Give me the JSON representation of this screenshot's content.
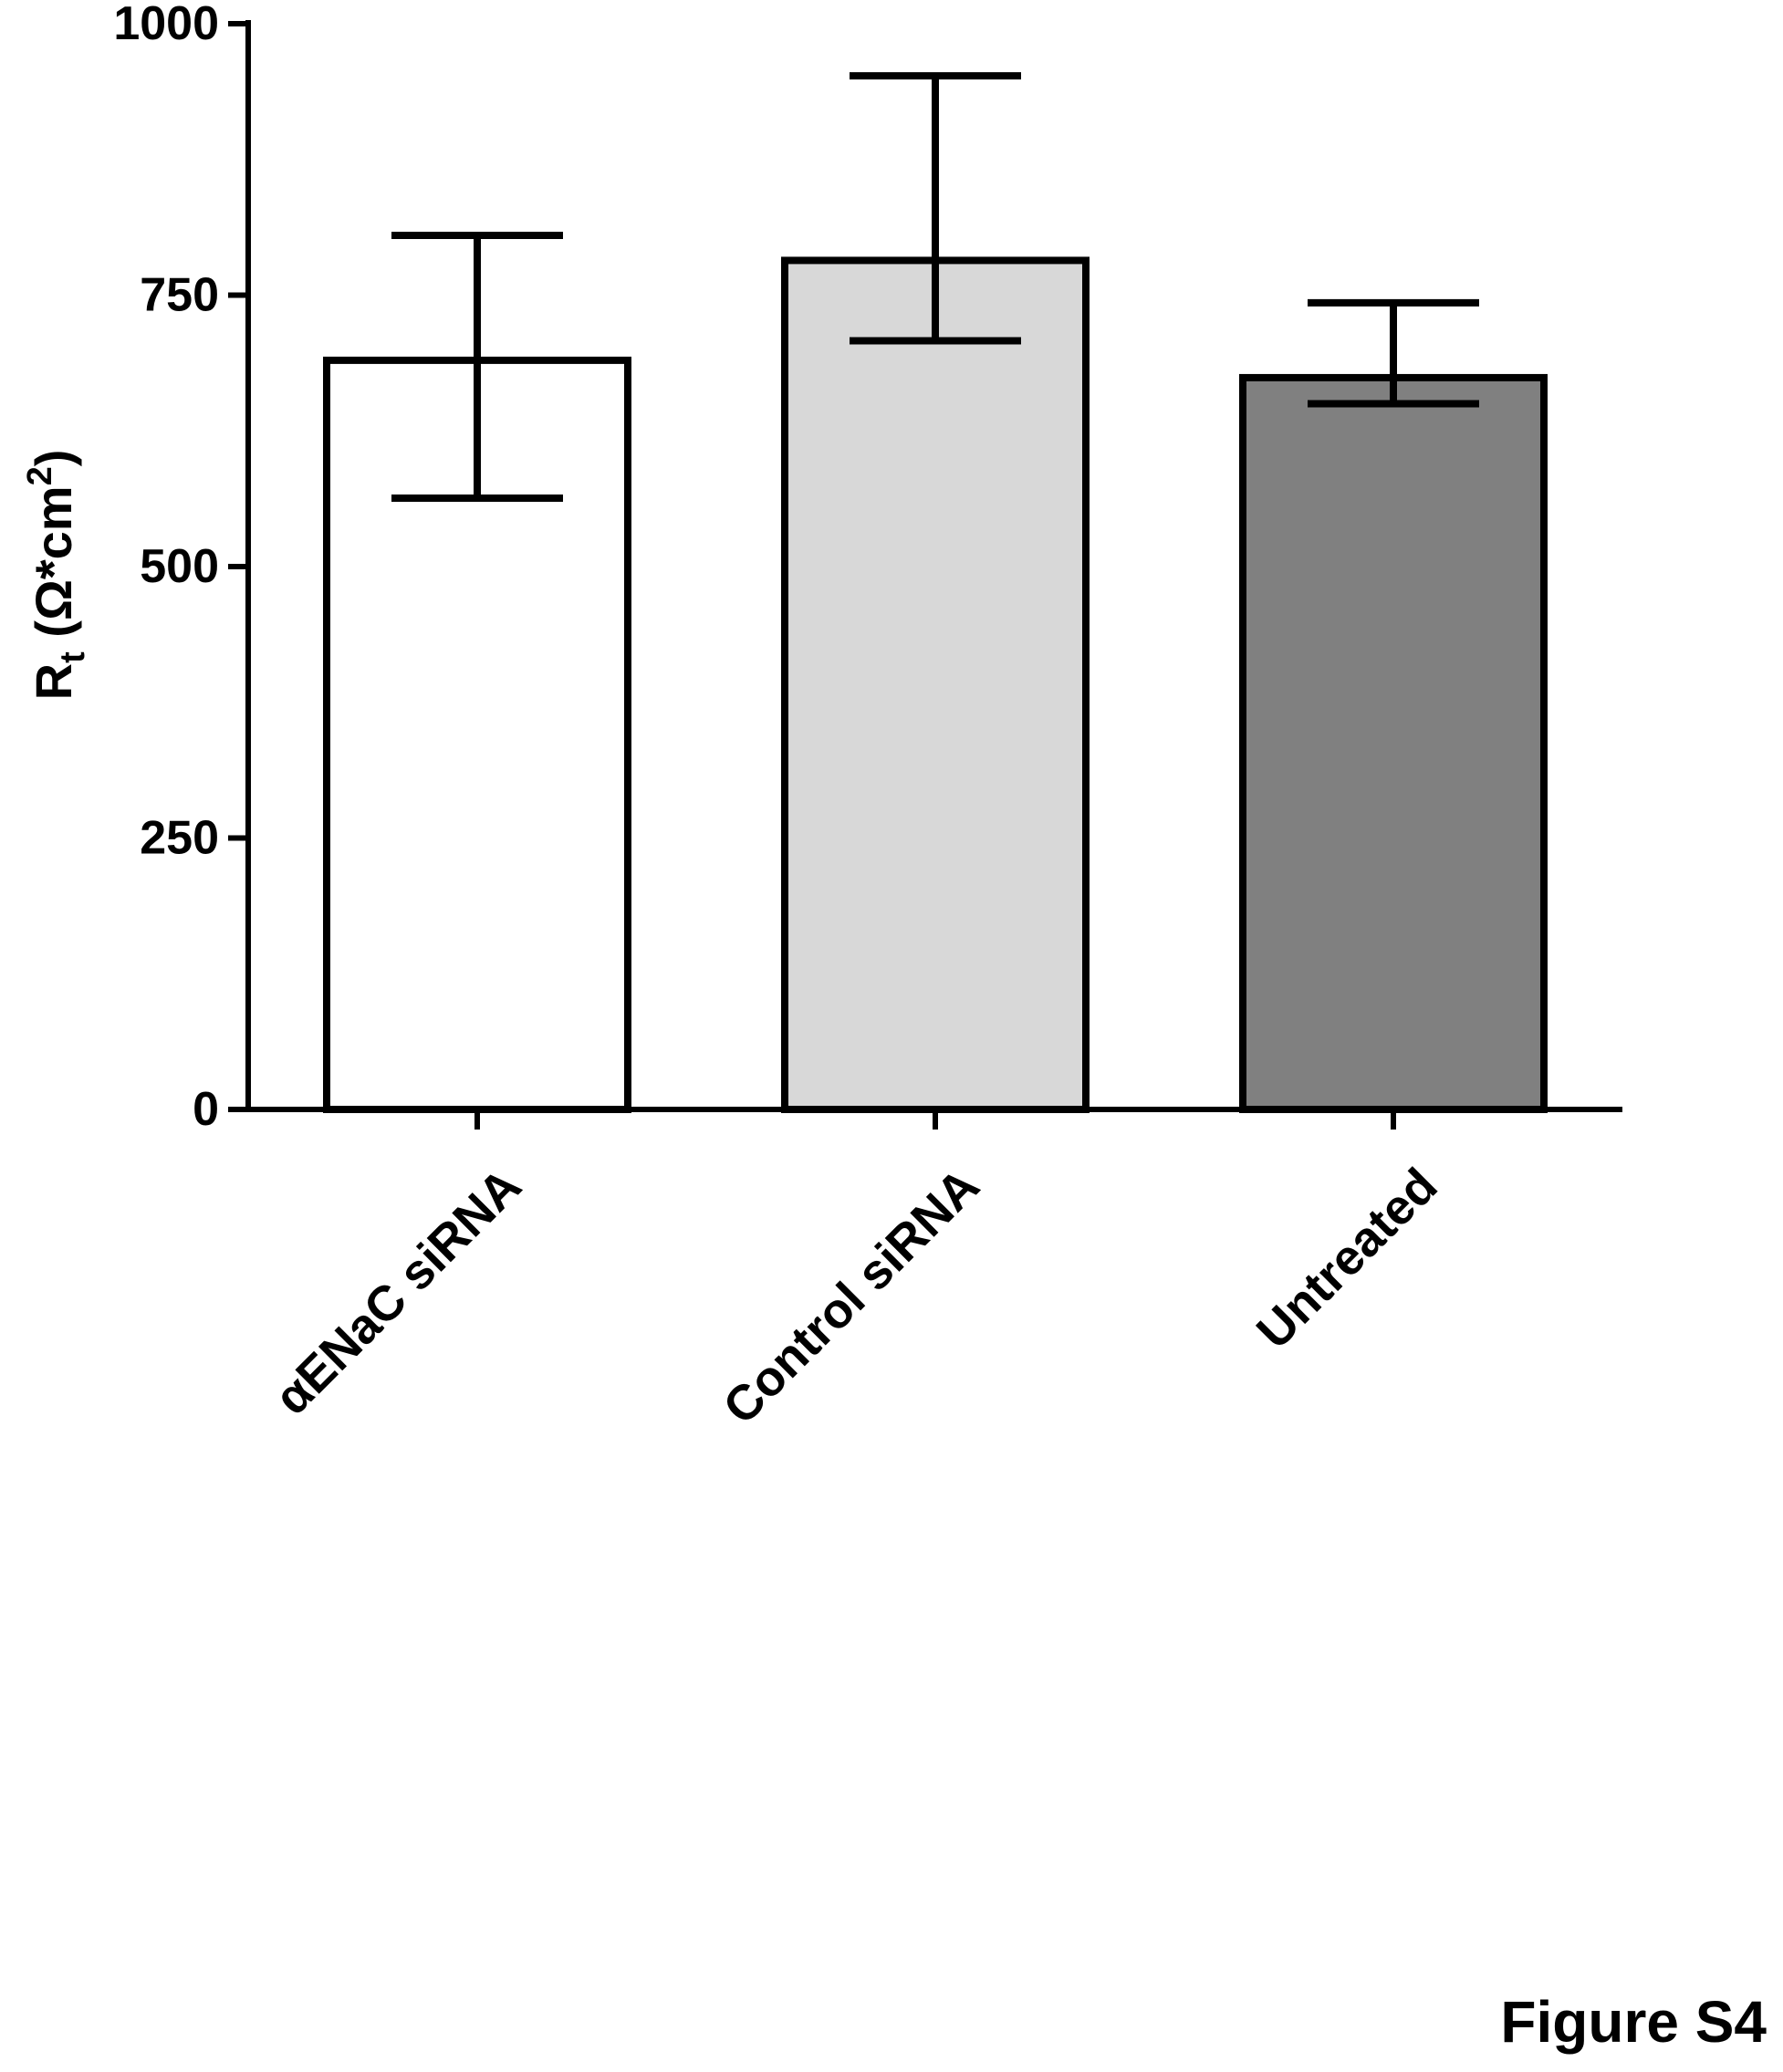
{
  "figure_label": "Figure S4",
  "chart_data": {
    "type": "bar",
    "categories": [
      "αENaC siRNA",
      "Control siRNA",
      "Untreated"
    ],
    "values": [
      690,
      782,
      674
    ],
    "error_bars": [
      {
        "upper": 805,
        "lower": 563
      },
      {
        "upper": 952,
        "lower": 708
      },
      {
        "upper": 743,
        "lower": 650
      }
    ],
    "bar_colors": [
      "#ffffff",
      "#d8d8d8",
      "#808080"
    ],
    "ylabel": {
      "main": "R",
      "subscript": "t",
      "unit": " (Ω*cm",
      "superscript": "2",
      "close": ")"
    },
    "ylim": [
      0,
      1000
    ],
    "yticks": [
      {
        "value": 0,
        "label": "0"
      },
      {
        "value": 250,
        "label": "250"
      },
      {
        "value": 500,
        "label": "500"
      },
      {
        "value": 750,
        "label": "750"
      },
      {
        "value": 1000,
        "label": "1000"
      }
    ],
    "grid": false,
    "legend": "none"
  }
}
